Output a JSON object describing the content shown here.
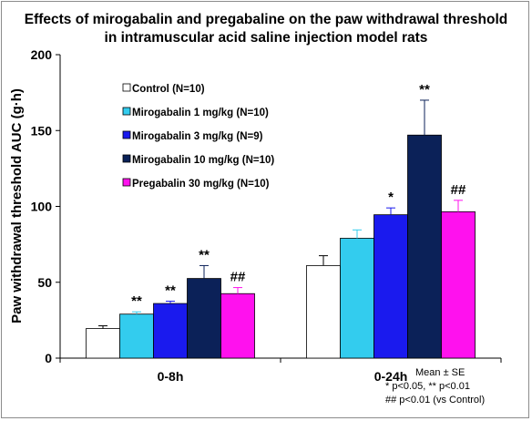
{
  "chart_data": {
    "type": "bar",
    "title": [
      "Effects of mirogabalin and pregabaline on the paw withdrawal threshold",
      "in intramuscular acid saline injection model rats"
    ],
    "ylabel": "Paw withdrawal threshold AUC (g·h)",
    "xlabel": "",
    "ylim": [
      0,
      200
    ],
    "yticks": [
      0,
      50,
      100,
      150,
      200
    ],
    "categories": [
      "0-8h",
      "0-24h"
    ],
    "series": [
      {
        "name": "Control (N=10)",
        "color": "#ffffff",
        "values": [
          19.5,
          61
        ],
        "errors": [
          1.8,
          6.5
        ],
        "marks": [
          "",
          ""
        ]
      },
      {
        "name": "Mirogabalin  1 mg/kg (N=10)",
        "color": "#33ccee",
        "values": [
          29,
          79
        ],
        "errors": [
          1.5,
          5.5
        ],
        "marks": [
          "**",
          ""
        ]
      },
      {
        "name": "Mirogabalin  3 mg/kg (N=9)",
        "color": "#1a1aee",
        "values": [
          36,
          94.5
        ],
        "errors": [
          1.5,
          4.5
        ],
        "marks": [
          "**",
          "*"
        ]
      },
      {
        "name": "Mirogabalin 10 mg/kg (N=10)",
        "color": "#0b2158",
        "values": [
          52.5,
          147
        ],
        "errors": [
          8.5,
          23
        ],
        "marks": [
          "**",
          "**"
        ]
      },
      {
        "name": "Pregabalin 30 mg/kg (N=10)",
        "color": "#ff11ee",
        "values": [
          42.5,
          96.5
        ],
        "errors": [
          4,
          7.5
        ],
        "marks": [
          "##",
          "##"
        ]
      }
    ],
    "legend_position": "top-left",
    "grid": false,
    "notes": [
      "Mean ± SE",
      "* p<0.05, ** p<0.01",
      "## p<0.01 (vs Control)"
    ]
  }
}
